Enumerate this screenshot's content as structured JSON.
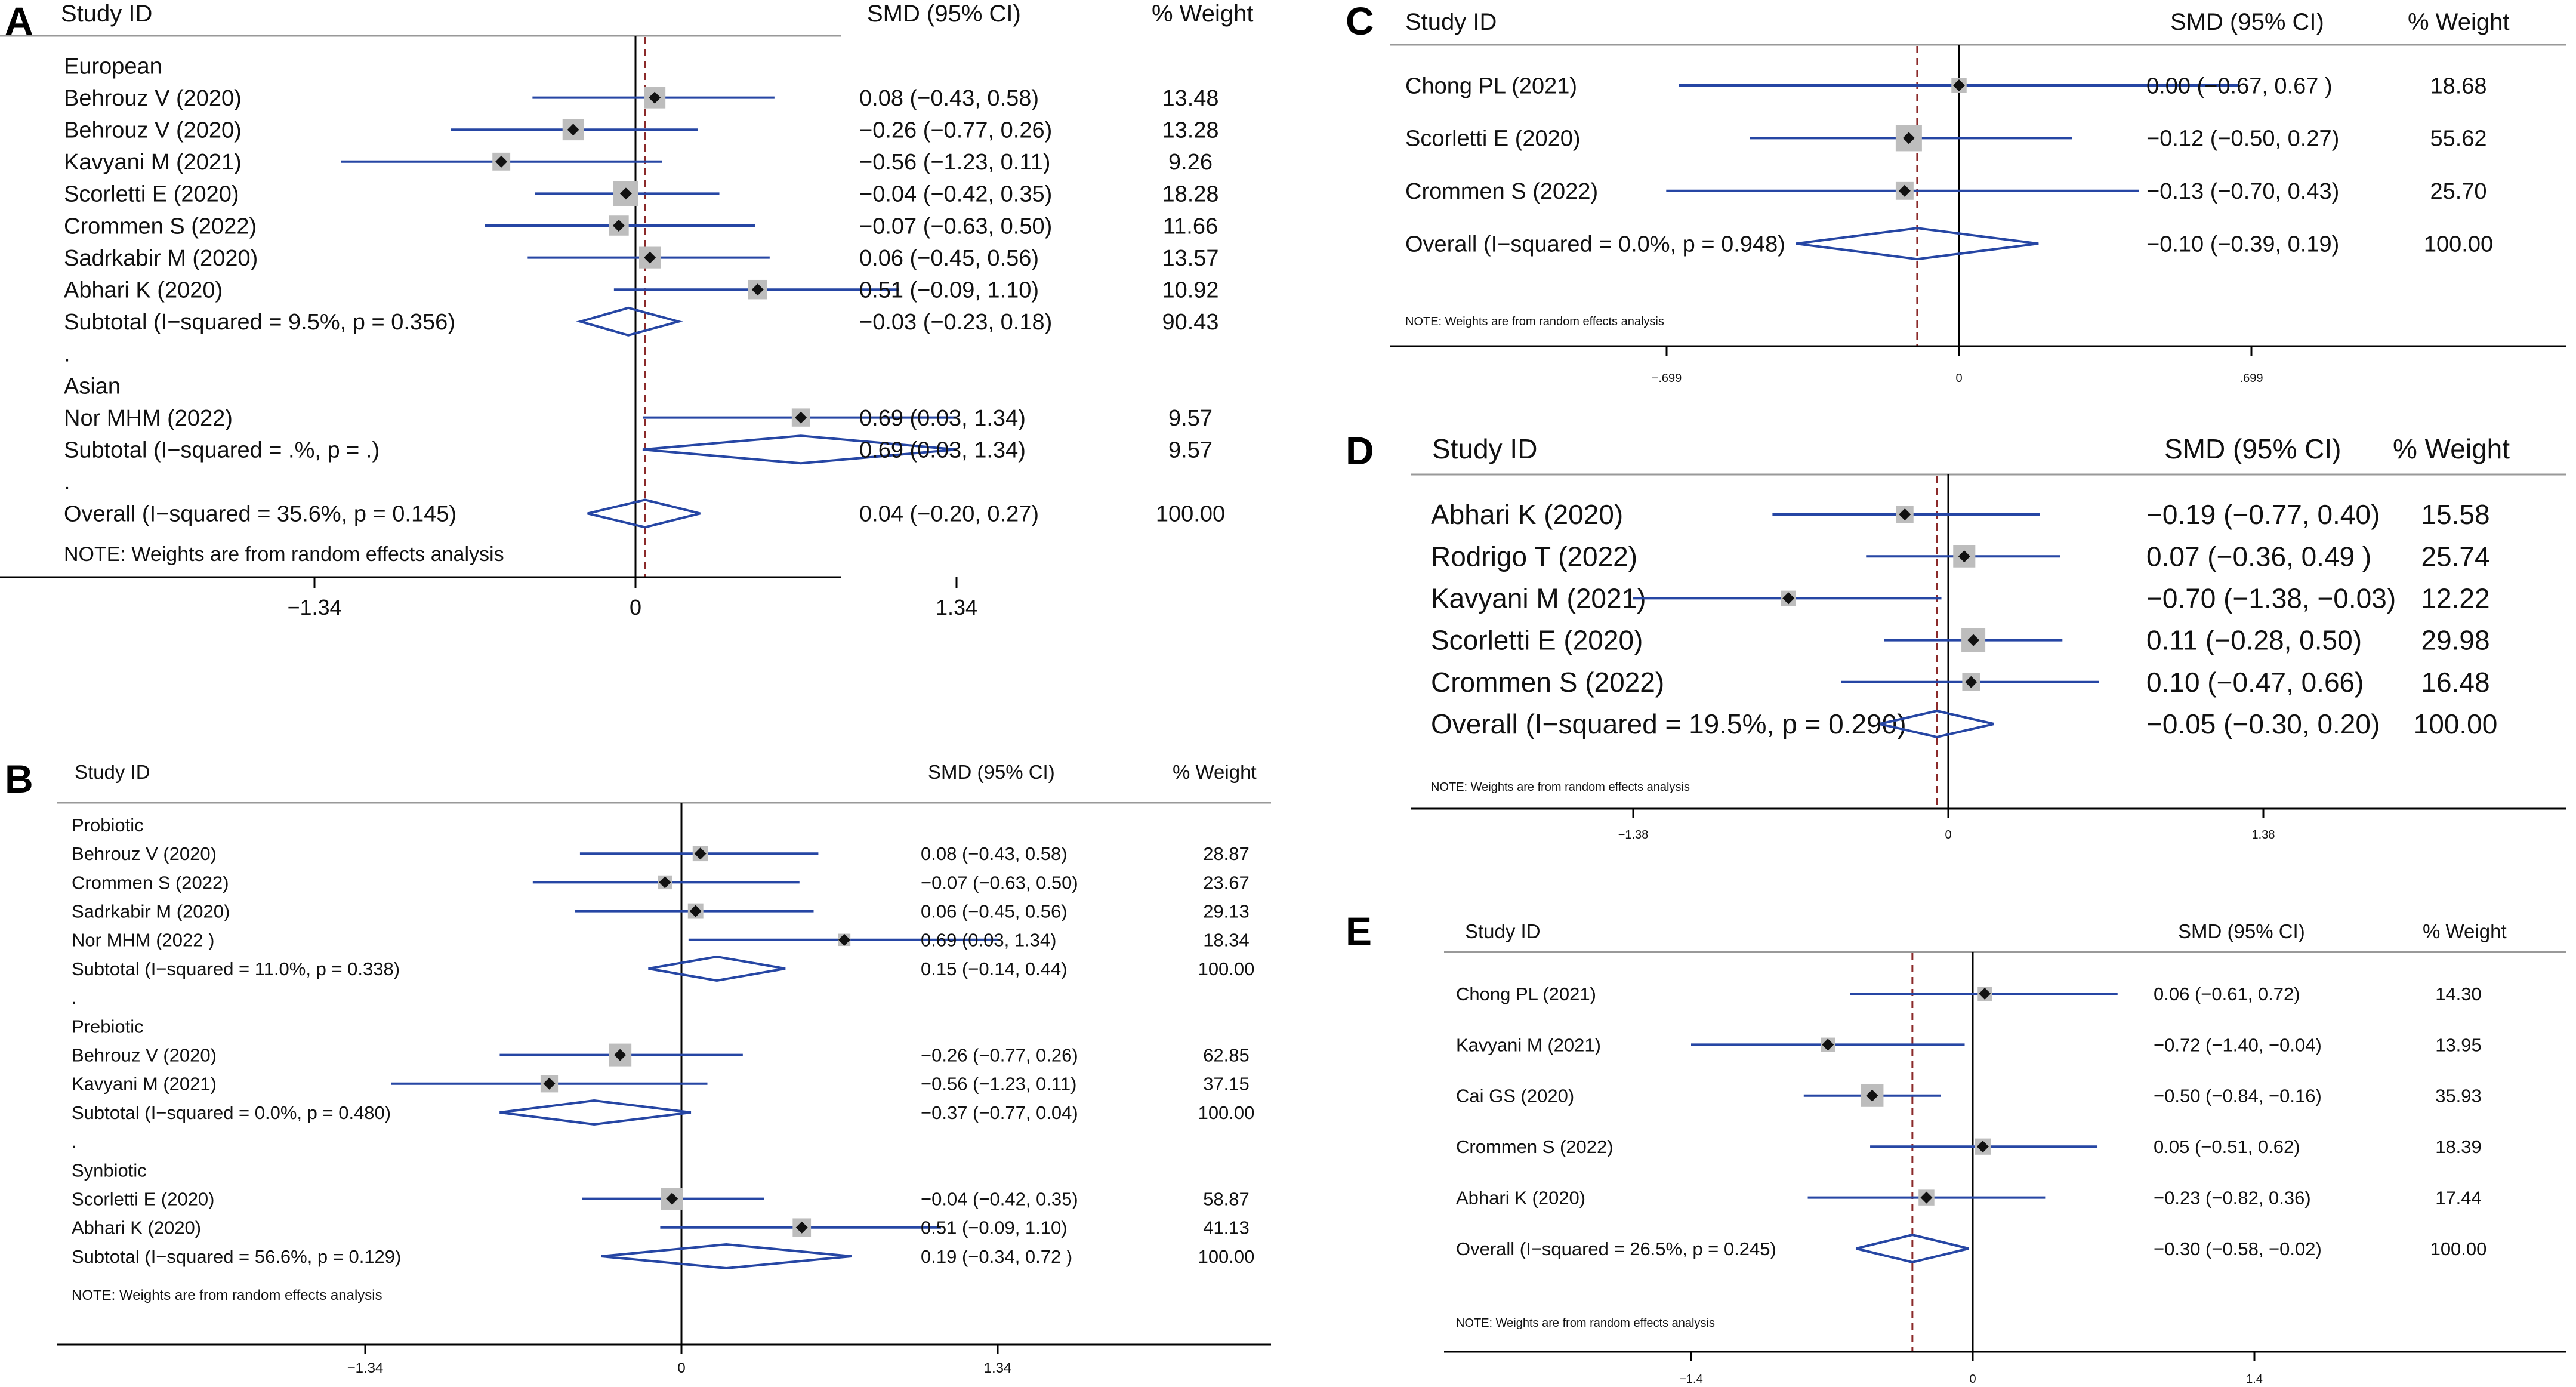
{
  "header_labels": {
    "study_id": "Study  ID",
    "smd_ci": "SMD (95% CI)",
    "weight": "% Weight"
  },
  "note": "NOTE: Weights are from random effects analysis",
  "colors": {
    "ci_line": "#2646a4",
    "diamond": "#2646a4",
    "square": "#bdbdbd",
    "point": "#111111",
    "null_line": "#000000",
    "overall_line": "#8b2a2a",
    "rule": "#999999",
    "text": "#111111"
  },
  "chart_data": [
    {
      "panel": "A",
      "type": "forest",
      "xlim": [
        -1.34,
        1.34
      ],
      "ticks": [
        "−1.34",
        "0",
        "1.34"
      ],
      "overall_effect": 0.04,
      "rows": [
        {
          "kind": "group",
          "label": "European"
        },
        {
          "kind": "study",
          "label": "Behrouz V (2020)",
          "est": 0.08,
          "lo": -0.43,
          "hi": 0.58,
          "ci_text": "0.08 (−0.43, 0.58)",
          "weight": "13.48"
        },
        {
          "kind": "study",
          "label": "Behrouz V (2020)",
          "est": -0.26,
          "lo": -0.77,
          "hi": 0.26,
          "ci_text": "−0.26 (−0.77, 0.26)",
          "weight": "13.28"
        },
        {
          "kind": "study",
          "label": "Kavyani M (2021)",
          "est": -0.56,
          "lo": -1.23,
          "hi": 0.11,
          "ci_text": "−0.56 (−1.23, 0.11)",
          "weight": "9.26"
        },
        {
          "kind": "study",
          "label": "Scorletti E (2020)",
          "est": -0.04,
          "lo": -0.42,
          "hi": 0.35,
          "ci_text": "−0.04 (−0.42, 0.35)",
          "weight": "18.28"
        },
        {
          "kind": "study",
          "label": "Crommen S (2022)",
          "est": -0.07,
          "lo": -0.63,
          "hi": 0.5,
          "ci_text": "−0.07 (−0.63, 0.50)",
          "weight": "11.66"
        },
        {
          "kind": "study",
          "label": "Sadrkabir M (2020)",
          "est": 0.06,
          "lo": -0.45,
          "hi": 0.56,
          "ci_text": "0.06 (−0.45, 0.56)",
          "weight": "13.57"
        },
        {
          "kind": "study",
          "label": "Abhari K (2020)",
          "est": 0.51,
          "lo": -0.09,
          "hi": 1.1,
          "ci_text": "0.51 (−0.09, 1.10)",
          "weight": "10.92"
        },
        {
          "kind": "subtotal",
          "label": "Subtotal  (I−squared = 9.5%, p = 0.356)",
          "est": -0.03,
          "lo": -0.23,
          "hi": 0.18,
          "ci_text": "−0.03 (−0.23, 0.18)",
          "weight": "90.43"
        },
        {
          "kind": "dot",
          "label": "."
        },
        {
          "kind": "group",
          "label": "Asian"
        },
        {
          "kind": "study",
          "label": "Nor MHM (2022)",
          "est": 0.69,
          "lo": 0.03,
          "hi": 1.34,
          "ci_text": "0.69 (0.03, 1.34)",
          "weight": "9.57"
        },
        {
          "kind": "subtotal",
          "label": "Subtotal  (I−squared = .%, p = .)",
          "est": 0.69,
          "lo": 0.03,
          "hi": 1.34,
          "ci_text": "0.69 (0.03, 1.34)",
          "weight": "9.57"
        },
        {
          "kind": "dot",
          "label": "."
        },
        {
          "kind": "overall",
          "label": "Overall  (I−squared = 35.6%, p = 0.145)",
          "est": 0.04,
          "lo": -0.2,
          "hi": 0.27,
          "ci_text": "0.04 (−0.20, 0.27)",
          "weight": "100.00"
        }
      ]
    },
    {
      "panel": "B",
      "type": "forest",
      "xlim": [
        -1.34,
        1.34
      ],
      "ticks": [
        "−1.34",
        "0",
        "1.34"
      ],
      "overall_effect": null,
      "rows": [
        {
          "kind": "group",
          "label": "Probiotic"
        },
        {
          "kind": "study",
          "label": "Behrouz V (2020)",
          "est": 0.08,
          "lo": -0.43,
          "hi": 0.58,
          "ci_text": "0.08 (−0.43, 0.58)",
          "weight": "28.87"
        },
        {
          "kind": "study",
          "label": "Crommen S (2022)",
          "est": -0.07,
          "lo": -0.63,
          "hi": 0.5,
          "ci_text": "−0.07 (−0.63, 0.50)",
          "weight": "23.67"
        },
        {
          "kind": "study",
          "label": "Sadrkabir M (2020)",
          "est": 0.06,
          "lo": -0.45,
          "hi": 0.56,
          "ci_text": "0.06 (−0.45, 0.56)",
          "weight": "29.13"
        },
        {
          "kind": "study",
          "label": "Nor MHM (2022 )",
          "est": 0.69,
          "lo": 0.03,
          "hi": 1.34,
          "ci_text": "0.69 (0.03, 1.34)",
          "weight": "18.34"
        },
        {
          "kind": "subtotal",
          "label": "Subtotal  (I−squared = 11.0%, p = 0.338)",
          "est": 0.15,
          "lo": -0.14,
          "hi": 0.44,
          "ci_text": "0.15 (−0.14, 0.44)",
          "weight": "100.00"
        },
        {
          "kind": "dot",
          "label": "."
        },
        {
          "kind": "group",
          "label": "Prebiotic"
        },
        {
          "kind": "study",
          "label": "Behrouz V (2020)",
          "est": -0.26,
          "lo": -0.77,
          "hi": 0.26,
          "ci_text": "−0.26 (−0.77, 0.26)",
          "weight": "62.85"
        },
        {
          "kind": "study",
          "label": "Kavyani M (2021)",
          "est": -0.56,
          "lo": -1.23,
          "hi": 0.11,
          "ci_text": "−0.56 (−1.23, 0.11)",
          "weight": "37.15"
        },
        {
          "kind": "subtotal",
          "label": "Subtotal  (I−squared = 0.0%, p = 0.480)",
          "est": -0.37,
          "lo": -0.77,
          "hi": 0.04,
          "ci_text": "−0.37 (−0.77, 0.04)",
          "weight": "100.00"
        },
        {
          "kind": "dot",
          "label": "."
        },
        {
          "kind": "group",
          "label": "Synbiotic"
        },
        {
          "kind": "study",
          "label": "Scorletti E (2020)",
          "est": -0.04,
          "lo": -0.42,
          "hi": 0.35,
          "ci_text": "−0.04 (−0.42, 0.35)",
          "weight": "58.87"
        },
        {
          "kind": "study",
          "label": "Abhari K (2020)",
          "est": 0.51,
          "lo": -0.09,
          "hi": 1.1,
          "ci_text": "0.51 (−0.09, 1.10)",
          "weight": "41.13"
        },
        {
          "kind": "subtotal",
          "label": "Subtotal  (I−squared = 56.6%, p = 0.129)",
          "est": 0.19,
          "lo": -0.34,
          "hi": 0.72,
          "ci_text": "0.19 (−0.34, 0.72 )",
          "weight": "100.00"
        }
      ]
    },
    {
      "panel": "C",
      "type": "forest",
      "xlim": [
        -0.699,
        0.699
      ],
      "ticks": [
        "−.699",
        "0",
        ".699"
      ],
      "overall_effect": -0.1,
      "rows": [
        {
          "kind": "study",
          "label": "Chong PL (2021)",
          "est": 0.0,
          "lo": -0.67,
          "hi": 0.67,
          "ci_text": "0.00 (−0.67, 0.67 )",
          "weight": "18.68"
        },
        {
          "kind": "study",
          "label": "Scorletti E (2020)",
          "est": -0.12,
          "lo": -0.5,
          "hi": 0.27,
          "ci_text": "−0.12 (−0.50, 0.27)",
          "weight": "55.62"
        },
        {
          "kind": "study",
          "label": "Crommen S (2022)",
          "est": -0.13,
          "lo": -0.7,
          "hi": 0.43,
          "ci_text": "−0.13 (−0.70, 0.43)",
          "weight": "25.70"
        },
        {
          "kind": "overall",
          "label": "Overall  (I−squared = 0.0%, p = 0.948)",
          "est": -0.1,
          "lo": -0.39,
          "hi": 0.19,
          "ci_text": "−0.10 (−0.39, 0.19)",
          "weight": "100.00"
        }
      ]
    },
    {
      "panel": "D",
      "type": "forest",
      "xlim": [
        -1.38,
        1.38
      ],
      "ticks": [
        "−1.38",
        "0",
        "1.38"
      ],
      "overall_effect": -0.05,
      "rows": [
        {
          "kind": "study",
          "label": "Abhari K (2020)",
          "est": -0.19,
          "lo": -0.77,
          "hi": 0.4,
          "ci_text": "−0.19 (−0.77, 0.40)",
          "weight": "15.58"
        },
        {
          "kind": "study",
          "label": "Rodrigo T (2022)",
          "est": 0.07,
          "lo": -0.36,
          "hi": 0.49,
          "ci_text": "0.07 (−0.36, 0.49 )",
          "weight": "25.74"
        },
        {
          "kind": "study",
          "label": "Kavyani M (2021)",
          "est": -0.7,
          "lo": -1.38,
          "hi": -0.03,
          "ci_text": "−0.70 (−1.38, −0.03)",
          "weight": "12.22"
        },
        {
          "kind": "study",
          "label": "Scorletti E (2020)",
          "est": 0.11,
          "lo": -0.28,
          "hi": 0.5,
          "ci_text": "0.11 (−0.28, 0.50)",
          "weight": "29.98"
        },
        {
          "kind": "study",
          "label": "Crommen S (2022)",
          "est": 0.1,
          "lo": -0.47,
          "hi": 0.66,
          "ci_text": "0.10 (−0.47, 0.66)",
          "weight": "16.48"
        },
        {
          "kind": "overall",
          "label": "Overall  (I−squared = 19.5%, p = 0.290)",
          "est": -0.05,
          "lo": -0.3,
          "hi": 0.2,
          "ci_text": "−0.05 (−0.30, 0.20)",
          "weight": "100.00"
        }
      ]
    },
    {
      "panel": "E",
      "type": "forest",
      "xlim": [
        -1.4,
        1.4
      ],
      "ticks": [
        "−1.4",
        "0",
        "1.4"
      ],
      "overall_effect": -0.3,
      "rows": [
        {
          "kind": "study",
          "label": "Chong PL (2021)",
          "est": 0.06,
          "lo": -0.61,
          "hi": 0.72,
          "ci_text": "0.06 (−0.61, 0.72)",
          "weight": "14.30"
        },
        {
          "kind": "study",
          "label": "Kavyani M (2021)",
          "est": -0.72,
          "lo": -1.4,
          "hi": -0.04,
          "ci_text": "−0.72 (−1.40, −0.04)",
          "weight": "13.95"
        },
        {
          "kind": "study",
          "label": "Cai GS (2020)",
          "est": -0.5,
          "lo": -0.84,
          "hi": -0.16,
          "ci_text": "−0.50 (−0.84, −0.16)",
          "weight": "35.93"
        },
        {
          "kind": "study",
          "label": "Crommen S (2022)",
          "est": 0.05,
          "lo": -0.51,
          "hi": 0.62,
          "ci_text": "0.05 (−0.51, 0.62)",
          "weight": "18.39"
        },
        {
          "kind": "study",
          "label": "Abhari K (2020)",
          "est": -0.23,
          "lo": -0.82,
          "hi": 0.36,
          "ci_text": "−0.23 (−0.82, 0.36)",
          "weight": "17.44"
        },
        {
          "kind": "overall",
          "label": "Overall  (I−squared = 26.5%, p = 0.245)",
          "est": -0.3,
          "lo": -0.58,
          "hi": -0.02,
          "ci_text": "−0.30 (−0.58, −0.02)",
          "weight": "100.00"
        }
      ]
    }
  ]
}
